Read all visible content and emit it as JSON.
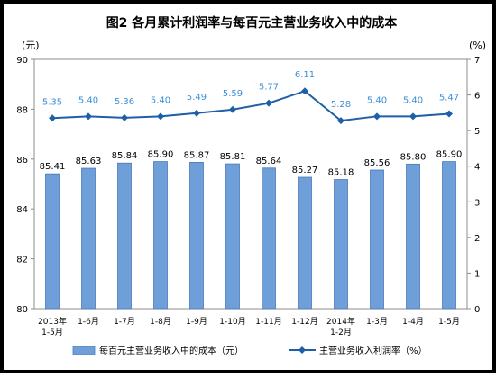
{
  "chart_data": {
    "type": "bar",
    "title": "图2  各月累计利润率与每百元主营业务收入中的成本",
    "categories": [
      "2013年\n1-5月",
      "1-6月",
      "1-7月",
      "1-8月",
      "1-9月",
      "1-10月",
      "1-11月",
      "1-12月",
      "2014年\n1-2月",
      "1-3月",
      "1-4月",
      "1-5月"
    ],
    "y_left": {
      "unit": "(元)",
      "range": [
        80,
        90
      ],
      "ticks": [
        80,
        82,
        84,
        86,
        88,
        90
      ]
    },
    "y_right": {
      "unit": "(%)",
      "range": [
        0,
        7
      ],
      "ticks": [
        0,
        1,
        2,
        3,
        4,
        5,
        6,
        7
      ]
    },
    "series": [
      {
        "name": "每百元主营业务收入中的成本（元）",
        "type": "bar",
        "axis": "left",
        "color": "#6f9fd8",
        "values": [
          85.41,
          85.63,
          85.84,
          85.9,
          85.87,
          85.81,
          85.64,
          85.27,
          85.18,
          85.56,
          85.8,
          85.9
        ]
      },
      {
        "name": "主营业务收入利润率（%）",
        "type": "line",
        "axis": "right",
        "color": "#1f5fa8",
        "label_color": "#3a8fd6",
        "values": [
          5.35,
          5.4,
          5.36,
          5.4,
          5.49,
          5.59,
          5.77,
          6.11,
          5.28,
          5.4,
          5.4,
          5.47
        ]
      }
    ],
    "value_labels": {
      "bar": [
        "85.41",
        "85.63",
        "85.84",
        "85.90",
        "85.87",
        "85.81",
        "85.64",
        "85.27",
        "85.18",
        "85.56",
        "85.80",
        "85.90"
      ],
      "line": [
        "5.35",
        "5.40",
        "5.36",
        "5.40",
        "5.49",
        "5.59",
        "5.77",
        "6.11",
        "5.28",
        "5.40",
        "5.40",
        "5.47"
      ]
    },
    "legend_position": "bottom",
    "grid": false
  }
}
